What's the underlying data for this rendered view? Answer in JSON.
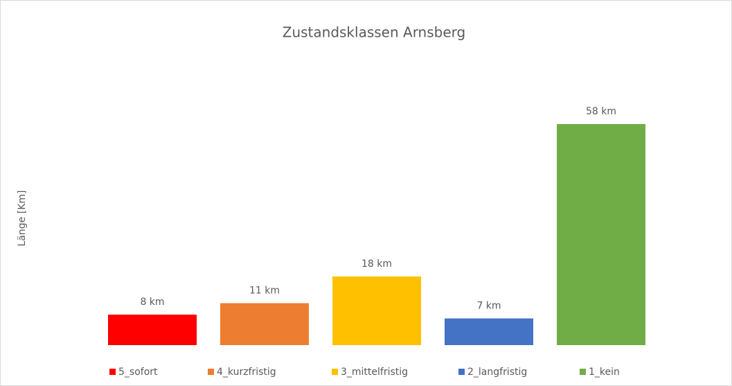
{
  "chart_data": {
    "type": "bar",
    "title": "Zustandsklassen Arnsberg",
    "y_label": "Länge [Km]",
    "categories": [
      null
    ],
    "series": [
      {
        "name": "5_sofort",
        "color": "#ff0000",
        "values": [
          8
        ],
        "value_labels": [
          "8 km"
        ]
      },
      {
        "name": "4_kurzfristig",
        "color": "#ed7d31",
        "values": [
          11
        ],
        "value_labels": [
          "11 km"
        ]
      },
      {
        "name": "3_mittelfristig",
        "color": "#ffc000",
        "values": [
          18
        ],
        "value_labels": [
          "18 km"
        ]
      },
      {
        "name": "2_langfristig",
        "color": "#4472c4",
        "values": [
          7
        ],
        "value_labels": [
          "7 km"
        ]
      },
      {
        "name": "1_kein",
        "color": "#70ad47",
        "values": [
          58
        ],
        "value_labels": [
          "58 km"
        ]
      }
    ],
    "ylim": [
      0,
      70
    ],
    "legend": "bottom"
  }
}
